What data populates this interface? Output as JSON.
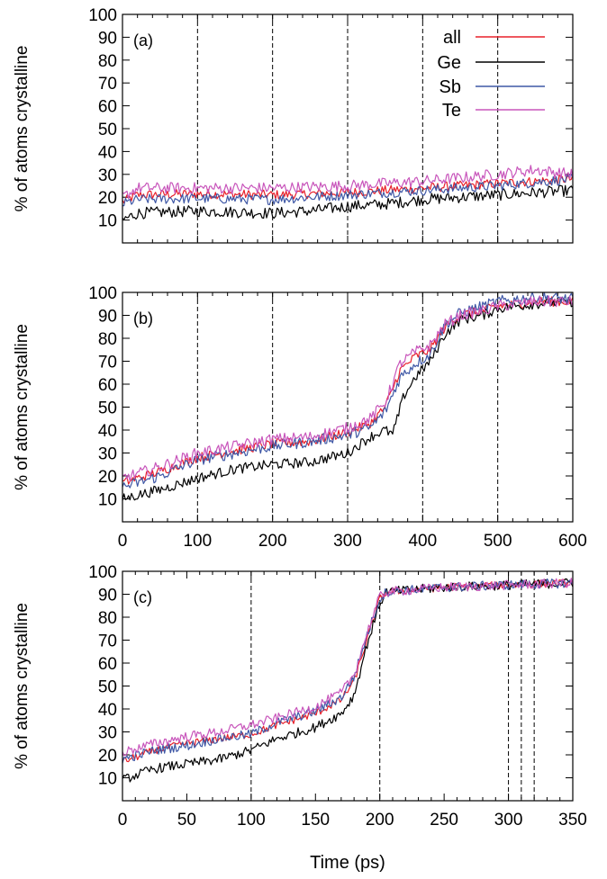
{
  "chart_data": [
    {
      "type": "line",
      "panel_label": "(a)",
      "xlabel": "",
      "ylabel": "% of atoms crystalline",
      "xlim": [
        0,
        600
      ],
      "ylim": [
        0,
        100
      ],
      "yticks": [
        10,
        20,
        30,
        40,
        50,
        60,
        70,
        80,
        90,
        100
      ],
      "xticks": [],
      "x_tick_labels_shown": false,
      "vlines": [
        100,
        200,
        300,
        400,
        500
      ],
      "legend": {
        "placement": "top-right"
      },
      "series": [
        {
          "name": "all",
          "color": "#e8202a",
          "noise": 1.5,
          "points": [
            [
              0,
              18
            ],
            [
              20,
              21
            ],
            [
              100,
              21.5
            ],
            [
              200,
              21
            ],
            [
              300,
              22
            ],
            [
              400,
              24
            ],
            [
              500,
              26
            ],
            [
              600,
              28
            ]
          ]
        },
        {
          "name": "Ge",
          "color": "#000000",
          "noise": 1.8,
          "points": [
            [
              0,
              10
            ],
            [
              20,
              13
            ],
            [
              100,
              14
            ],
            [
              200,
              13
            ],
            [
              250,
              14
            ],
            [
              300,
              16
            ],
            [
              350,
              17
            ],
            [
              400,
              19
            ],
            [
              500,
              21
            ],
            [
              600,
              23
            ]
          ]
        },
        {
          "name": "Sb",
          "color": "#3f58a6",
          "noise": 1.6,
          "points": [
            [
              0,
              17
            ],
            [
              20,
              19
            ],
            [
              100,
              19.5
            ],
            [
              200,
              19
            ],
            [
              300,
              21
            ],
            [
              400,
              23
            ],
            [
              500,
              25
            ],
            [
              600,
              28
            ]
          ]
        },
        {
          "name": "Te",
          "color": "#c855bb",
          "noise": 1.8,
          "points": [
            [
              0,
              20
            ],
            [
              20,
              24
            ],
            [
              100,
              24
            ],
            [
              200,
              24
            ],
            [
              300,
              25
            ],
            [
              400,
              27
            ],
            [
              500,
              30
            ],
            [
              550,
              32
            ],
            [
              600,
              30
            ]
          ]
        }
      ]
    },
    {
      "type": "line",
      "panel_label": "(b)",
      "xlabel": "",
      "ylabel": "% of atoms crystalline",
      "xlim": [
        0,
        600
      ],
      "ylim": [
        0,
        100
      ],
      "yticks": [
        10,
        20,
        30,
        40,
        50,
        60,
        70,
        80,
        90,
        100
      ],
      "xticks": [
        0,
        100,
        200,
        300,
        400,
        500,
        600
      ],
      "x_tick_labels_shown": true,
      "vlines": [
        100,
        200,
        300,
        400,
        500
      ],
      "series": [
        {
          "name": "all",
          "color": "#e8202a",
          "noise": 1.5,
          "points": [
            [
              0,
              17
            ],
            [
              50,
              22
            ],
            [
              100,
              28
            ],
            [
              150,
              31
            ],
            [
              200,
              34
            ],
            [
              250,
              35
            ],
            [
              300,
              39
            ],
            [
              330,
              43
            ],
            [
              350,
              50
            ],
            [
              370,
              66
            ],
            [
              390,
              72
            ],
            [
              410,
              75
            ],
            [
              430,
              85
            ],
            [
              450,
              90
            ],
            [
              480,
              92
            ],
            [
              500,
              94
            ],
            [
              550,
              96
            ],
            [
              600,
              96
            ]
          ]
        },
        {
          "name": "Ge",
          "color": "#000000",
          "noise": 1.6,
          "points": [
            [
              0,
              10
            ],
            [
              50,
              14
            ],
            [
              100,
              19
            ],
            [
              150,
              23
            ],
            [
              200,
              25
            ],
            [
              250,
              26
            ],
            [
              300,
              30
            ],
            [
              330,
              37
            ],
            [
              350,
              40
            ],
            [
              360,
              38
            ],
            [
              375,
              55
            ],
            [
              390,
              63
            ],
            [
              410,
              70
            ],
            [
              430,
              82
            ],
            [
              450,
              88
            ],
            [
              480,
              90
            ],
            [
              500,
              93
            ],
            [
              550,
              95
            ],
            [
              600,
              96
            ]
          ]
        },
        {
          "name": "Sb",
          "color": "#3f58a6",
          "noise": 1.8,
          "points": [
            [
              0,
              15
            ],
            [
              50,
              20
            ],
            [
              100,
              27
            ],
            [
              150,
              30
            ],
            [
              200,
              33
            ],
            [
              250,
              35
            ],
            [
              300,
              38
            ],
            [
              330,
              41
            ],
            [
              350,
              48
            ],
            [
              370,
              63
            ],
            [
              390,
              69
            ],
            [
              410,
              73
            ],
            [
              430,
              86
            ],
            [
              450,
              91
            ],
            [
              480,
              94
            ],
            [
              500,
              96
            ],
            [
              550,
              98
            ],
            [
              600,
              97
            ]
          ]
        },
        {
          "name": "Te",
          "color": "#c855bb",
          "noise": 1.8,
          "points": [
            [
              0,
              19
            ],
            [
              50,
              24
            ],
            [
              100,
              30
            ],
            [
              150,
              33
            ],
            [
              200,
              36
            ],
            [
              250,
              37
            ],
            [
              300,
              41
            ],
            [
              330,
              45
            ],
            [
              350,
              52
            ],
            [
              370,
              69
            ],
            [
              390,
              74
            ],
            [
              410,
              77
            ],
            [
              430,
              86
            ],
            [
              450,
              90
            ],
            [
              480,
              92
            ],
            [
              500,
              94
            ],
            [
              550,
              96
            ],
            [
              600,
              96
            ]
          ]
        }
      ]
    },
    {
      "type": "line",
      "panel_label": "(c)",
      "xlabel": "Time (ps)",
      "ylabel": "% of atoms crystalline",
      "xlim": [
        0,
        350
      ],
      "ylim": [
        0,
        100
      ],
      "yticks": [
        10,
        20,
        30,
        40,
        50,
        60,
        70,
        80,
        90,
        100
      ],
      "xticks": [
        0,
        50,
        100,
        150,
        200,
        250,
        300,
        350
      ],
      "x_tick_labels_shown": true,
      "vlines": [
        100,
        200,
        300,
        310,
        320
      ],
      "series": [
        {
          "name": "all",
          "color": "#e8202a",
          "noise": 1.2,
          "points": [
            [
              0,
              17
            ],
            [
              25,
              22
            ],
            [
              50,
              25
            ],
            [
              75,
              27
            ],
            [
              100,
              29
            ],
            [
              120,
              33
            ],
            [
              150,
              38
            ],
            [
              170,
              44
            ],
            [
              180,
              52
            ],
            [
              190,
              70
            ],
            [
              200,
              88
            ],
            [
              205,
              91
            ],
            [
              250,
              93
            ],
            [
              300,
              94
            ],
            [
              350,
              95
            ]
          ]
        },
        {
          "name": "Ge",
          "color": "#000000",
          "noise": 1.5,
          "points": [
            [
              0,
              9
            ],
            [
              25,
              14
            ],
            [
              50,
              16
            ],
            [
              75,
              18
            ],
            [
              100,
              22
            ],
            [
              120,
              27
            ],
            [
              150,
              32
            ],
            [
              170,
              38
            ],
            [
              180,
              46
            ],
            [
              190,
              68
            ],
            [
              200,
              86
            ],
            [
              205,
              91
            ],
            [
              250,
              93
            ],
            [
              300,
              94
            ],
            [
              350,
              95
            ]
          ]
        },
        {
          "name": "Sb",
          "color": "#3f58a6",
          "noise": 1.5,
          "points": [
            [
              0,
              18
            ],
            [
              25,
              22
            ],
            [
              50,
              24
            ],
            [
              75,
              27
            ],
            [
              100,
              29
            ],
            [
              120,
              34
            ],
            [
              150,
              39
            ],
            [
              170,
              45
            ],
            [
              180,
              54
            ],
            [
              190,
              72
            ],
            [
              200,
              88
            ],
            [
              205,
              91
            ],
            [
              250,
              93
            ],
            [
              300,
              94
            ],
            [
              350,
              95
            ]
          ]
        },
        {
          "name": "Te",
          "color": "#c855bb",
          "noise": 1.5,
          "points": [
            [
              0,
              21
            ],
            [
              25,
              25
            ],
            [
              50,
              28
            ],
            [
              75,
              30
            ],
            [
              100,
              33
            ],
            [
              120,
              36
            ],
            [
              150,
              41
            ],
            [
              170,
              47
            ],
            [
              180,
              55
            ],
            [
              190,
              73
            ],
            [
              200,
              89
            ],
            [
              205,
              91
            ],
            [
              250,
              93
            ],
            [
              300,
              94
            ],
            [
              350,
              95
            ]
          ]
        }
      ]
    }
  ]
}
